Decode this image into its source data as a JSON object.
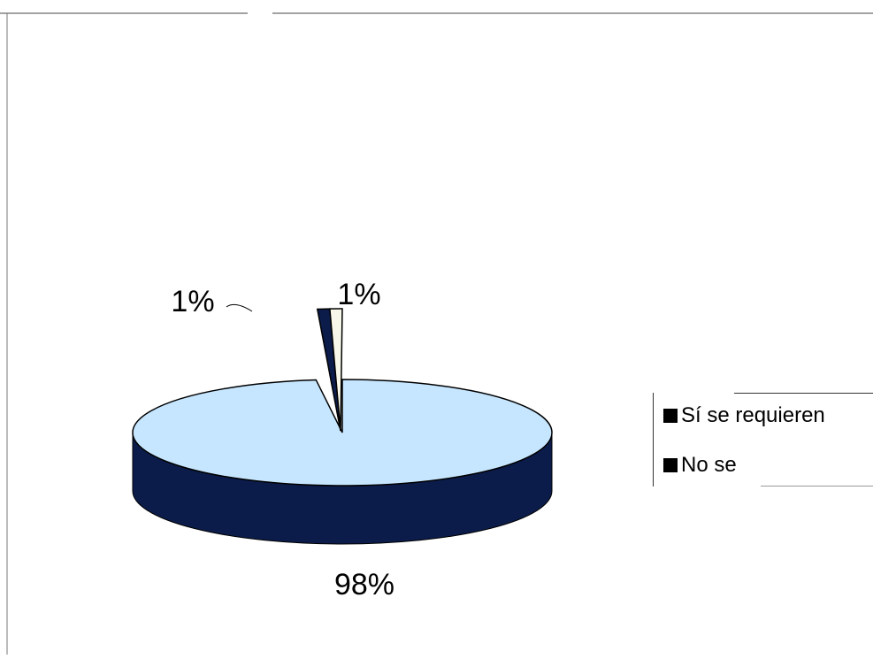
{
  "chart_data": {
    "type": "pie",
    "style": "3d",
    "slices": [
      {
        "label": "Sí se requieren",
        "value": 98,
        "data_label": "98%",
        "color": "#c6e6ff"
      },
      {
        "label": "No se",
        "value": 1,
        "data_label": "1%",
        "color": "#0b1c4a"
      },
      {
        "label": "",
        "value": 1,
        "data_label": "1%",
        "color": "#f8f8ea"
      }
    ],
    "legend": {
      "position": "right",
      "entries": [
        "Sí se requieren",
        "No se"
      ]
    }
  }
}
